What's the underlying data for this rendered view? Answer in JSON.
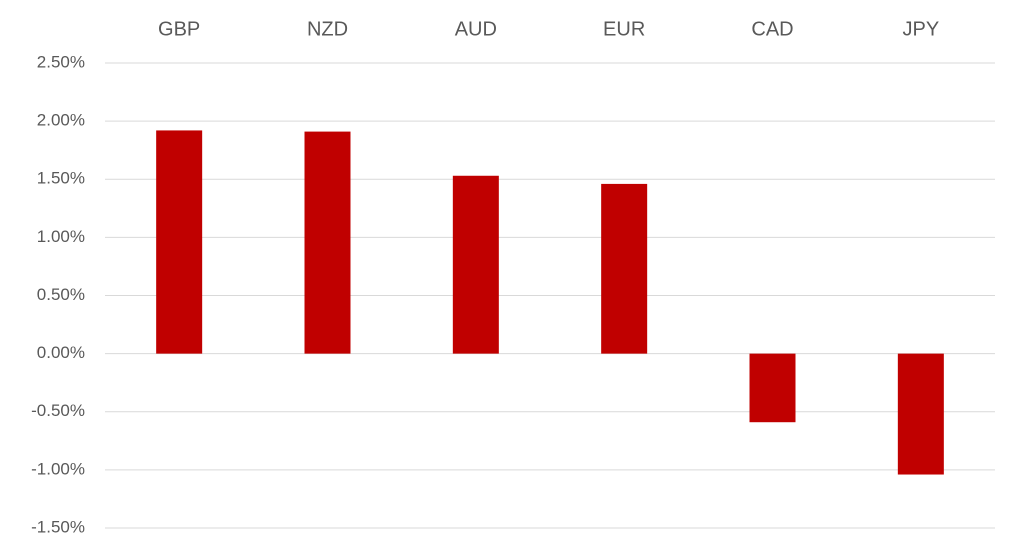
{
  "chart_data": {
    "type": "bar",
    "categories": [
      "GBP",
      "NZD",
      "AUD",
      "EUR",
      "CAD",
      "JPY"
    ],
    "values": [
      1.92,
      1.91,
      1.53,
      1.46,
      -0.59,
      -1.04
    ],
    "color": "#c00000",
    "ylim": [
      -1.5,
      2.5
    ],
    "yticks": [
      {
        "value": 2.5,
        "label": "2.50%"
      },
      {
        "value": 2.0,
        "label": "2.00%"
      },
      {
        "value": 1.5,
        "label": "1.50%"
      },
      {
        "value": 1.0,
        "label": "1.00%"
      },
      {
        "value": 0.5,
        "label": "0.50%"
      },
      {
        "value": 0,
        "label": "0.00%"
      },
      {
        "value": -0.5,
        "label": "-0.50%"
      },
      {
        "value": -1.0,
        "label": "-1.00%"
      },
      {
        "value": -1.5,
        "label": "-1.50%"
      }
    ],
    "grid": true
  }
}
